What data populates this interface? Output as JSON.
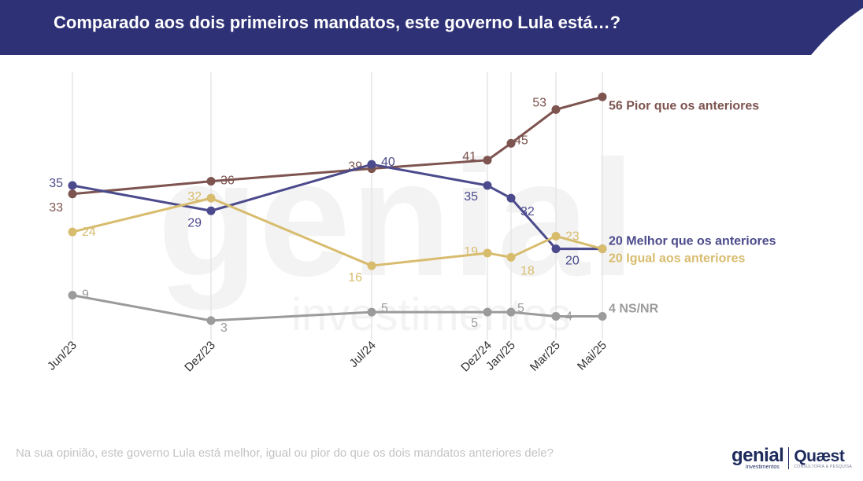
{
  "header": {
    "title": "Comparado aos dois primeiros mandatos, este governo Lula está…?",
    "color": "#2e3175"
  },
  "footnote": "Na sua opinião, este governo Lula está melhor, igual ou pior do que os dois mandatos anteriores dele?",
  "brand": {
    "genial_name": "genial",
    "genial_sub": "investimentos",
    "quaest_name": "Quæst",
    "quaest_sub": "CONSULTORIA & PESQUISA"
  },
  "watermark": {
    "big": "genial",
    "small": "investimentos"
  },
  "chart_data": {
    "type": "line",
    "title": "Comparado aos dois primeiros mandatos, este governo Lula está…?",
    "xlabel": "",
    "ylabel": "",
    "grid": "vertical",
    "x": [
      "Jun/23",
      "Dez/23",
      "Jul/24",
      "Dez/24",
      "Jan/25",
      "Mar/25",
      "Mai/25"
    ],
    "series": [
      {
        "name": "Pior que os anteriores",
        "end_label": "56 Pior que os anteriores",
        "color": "#7d5450",
        "values": [
          33,
          36,
          39,
          41,
          45,
          53,
          56
        ]
      },
      {
        "name": "Melhor que os anteriores",
        "end_label": "20 Melhor que os anteriores",
        "color": "#4b4a8c",
        "values": [
          35,
          29,
          40,
          35,
          32,
          20,
          20
        ]
      },
      {
        "name": "Igual aos anteriores",
        "end_label": "20 Igual aos anteriores",
        "color": "#d8bc6e",
        "values": [
          24,
          32,
          16,
          19,
          18,
          23,
          20
        ]
      },
      {
        "name": "NS/NR",
        "end_label": "4 NS/NR",
        "color": "#9b9b9b",
        "values": [
          9,
          3,
          5,
          5,
          5,
          4,
          4
        ]
      }
    ]
  }
}
